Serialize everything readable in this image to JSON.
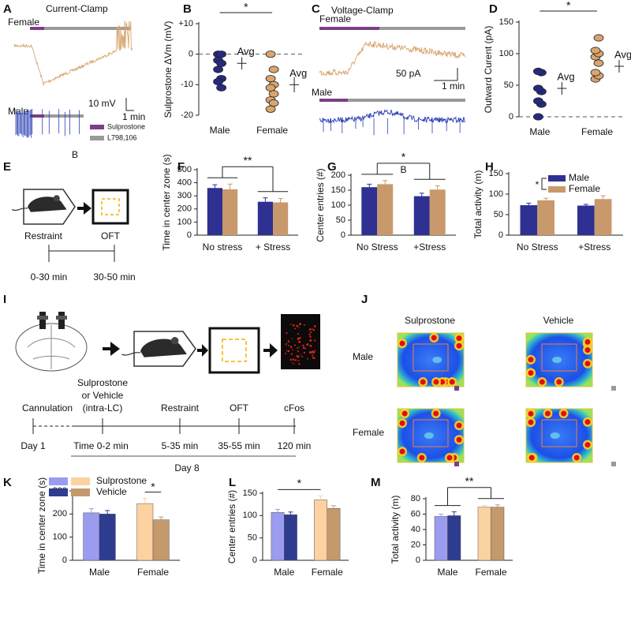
{
  "panel_letters": [
    "A",
    "B",
    "C",
    "D",
    "E",
    "F",
    "G",
    "H",
    "I",
    "J",
    "K",
    "L",
    "M"
  ],
  "panel_a": {
    "title": "Current-Clamp",
    "female": "Female",
    "male": "Male",
    "scale_v": "10 mV",
    "scale_t": "1 min",
    "legend": [
      "Sulprostone",
      "L798,106"
    ],
    "stray_label": "B"
  },
  "panel_c": {
    "title": "Voltage-Clamp",
    "female": "Female",
    "male": "Male",
    "scale_v": "50 pA",
    "scale_t": "1 min"
  },
  "panel_e": {
    "stages": [
      "Restraint",
      "OFT"
    ],
    "times": [
      "0-30 min",
      "30-50 min"
    ]
  },
  "panel_i": {
    "treatment": [
      "Sulprostone",
      "or Vehicle",
      "(intra-LC)"
    ],
    "events": [
      "Cannulation",
      "Restraint",
      "OFT",
      "cFos"
    ],
    "times": [
      "Day 1",
      "Time 0-2 min",
      "5-35 min",
      "35-55 min",
      "120 min"
    ],
    "day": "Day 8"
  },
  "panel_j": {
    "columns": [
      "Sulprostone",
      "Vehicle"
    ],
    "rows": [
      "Male",
      "Female"
    ]
  },
  "chart_data": [
    {
      "type": "strip",
      "y_label": "Sulprostone ΔVm (mV)",
      "categories": [
        "Male",
        "Female"
      ],
      "colors": [
        "#262a7f",
        "#d9a56e"
      ],
      "values": [
        [
          0,
          0,
          -2,
          -3,
          -5,
          -8,
          -9,
          -11
        ],
        [
          0,
          -5,
          -8,
          -10,
          -11,
          -13,
          -15,
          -16,
          -18
        ]
      ],
      "means": [
        -3,
        -10
      ],
      "errors": [
        2,
        2.5
      ],
      "mean_labels": [
        "Avg",
        "Avg"
      ],
      "significance": "*",
      "reference_line": 0,
      "ylim": [
        -20,
        10
      ],
      "yticks": [
        {
          "value": 10,
          "label": "+10"
        },
        0,
        -10,
        -20
      ]
    },
    {
      "type": "strip",
      "y_label": "Outward Curent (pA)",
      "categories": [
        "Male",
        "Female"
      ],
      "colors": [
        "#262a7f",
        "#d9a56e"
      ],
      "values": [
        [
          0,
          20,
          25,
          40,
          45,
          70,
          72
        ],
        [
          60,
          65,
          70,
          85,
          95,
          100,
          105,
          125
        ]
      ],
      "means": [
        45,
        80
      ],
      "errors": [
        10,
        10
      ],
      "mean_labels": [
        "Avg",
        "Avg"
      ],
      "significance": "*",
      "reference_line": 0,
      "ylim": [
        0,
        150
      ],
      "yticks": [
        0,
        50,
        100,
        150
      ]
    },
    {
      "type": "bar",
      "y_label": "Time in center zone (s)",
      "categories": [
        "No stress",
        "+ Stress"
      ],
      "series": [
        {
          "color": "#2e3192",
          "values": [
            360,
            255
          ],
          "errors": [
            25,
            30
          ]
        },
        {
          "color": "#c8996a",
          "values": [
            350,
            250
          ],
          "errors": [
            40,
            30
          ]
        }
      ],
      "significance": "**",
      "ylim": [
        0,
        500
      ],
      "yticks": [
        0,
        100,
        200,
        300,
        400,
        500
      ]
    },
    {
      "type": "bar",
      "y_label": "Center entries (#)",
      "categories": [
        "No Stress",
        "+Stress"
      ],
      "series": [
        {
          "color": "#2e3192",
          "values": [
            160,
            130
          ],
          "errors": [
            10,
            10
          ]
        },
        {
          "color": "#c8996a",
          "values": [
            170,
            152
          ],
          "errors": [
            12,
            13
          ]
        }
      ],
      "significance": "*",
      "annotation": "B",
      "ylim": [
        0,
        200
      ],
      "yticks": [
        0,
        50,
        100,
        150,
        200
      ]
    },
    {
      "type": "bar",
      "y_label": "Total activity (m)",
      "categories": [
        "No Stress",
        "+Stress"
      ],
      "series": [
        {
          "name": "Male",
          "color": "#2e3192",
          "values": [
            73,
            72
          ],
          "errors": [
            5,
            3
          ]
        },
        {
          "name": "Female",
          "color": "#c8996a",
          "values": [
            85,
            88
          ],
          "errors": [
            5,
            8
          ]
        }
      ],
      "legend": "upper left",
      "legend_note": "*",
      "ylim": [
        0,
        150
      ],
      "yticks": [
        0,
        50,
        100,
        150
      ]
    },
    {
      "type": "bar",
      "y_label": "Time in center zone (s)",
      "categories": [
        "Male",
        "Female"
      ],
      "series": [
        {
          "name": "Sulprostone",
          "colors": [
            "#9b9cf0",
            "#fcd2a0"
          ],
          "values": [
            205,
            245
          ],
          "errors": [
            18,
            22
          ]
        },
        {
          "name": "Vehicle",
          "colors": [
            "#2e3c8f",
            "#c49a6c"
          ],
          "values": [
            200,
            175
          ],
          "errors": [
            15,
            12
          ]
        }
      ],
      "legend": "upper left",
      "significance": "*",
      "ylim": [
        0,
        300
      ],
      "yticks": [
        0,
        100,
        200,
        300
      ]
    },
    {
      "type": "bar",
      "y_label": "Center entries (#)",
      "categories": [
        "Male",
        "Female"
      ],
      "series": [
        {
          "colors": [
            "#9b9cf0",
            "#fcd2a0"
          ],
          "values": [
            107,
            135
          ],
          "errors": [
            7,
            9
          ]
        },
        {
          "colors": [
            "#2e3c8f",
            "#c49a6c"
          ],
          "values": [
            102,
            116
          ],
          "errors": [
            6,
            6
          ]
        }
      ],
      "significance": "*",
      "ylim": [
        0,
        150
      ],
      "yticks": [
        0,
        50,
        100,
        150
      ]
    },
    {
      "type": "bar",
      "y_label": "Total activity (m)",
      "categories": [
        "Male",
        "Female"
      ],
      "series": [
        {
          "colors": [
            "#9b9cf0",
            "#fcd2a0"
          ],
          "values": [
            57,
            69
          ],
          "errors": [
            3,
            2
          ]
        },
        {
          "colors": [
            "#2e3c8f",
            "#c49a6c"
          ],
          "values": [
            58,
            69
          ],
          "errors": [
            5,
            3
          ]
        }
      ],
      "significance": "**",
      "ylim": [
        0,
        80
      ],
      "yticks": [
        0,
        20,
        40,
        60,
        80
      ]
    }
  ]
}
